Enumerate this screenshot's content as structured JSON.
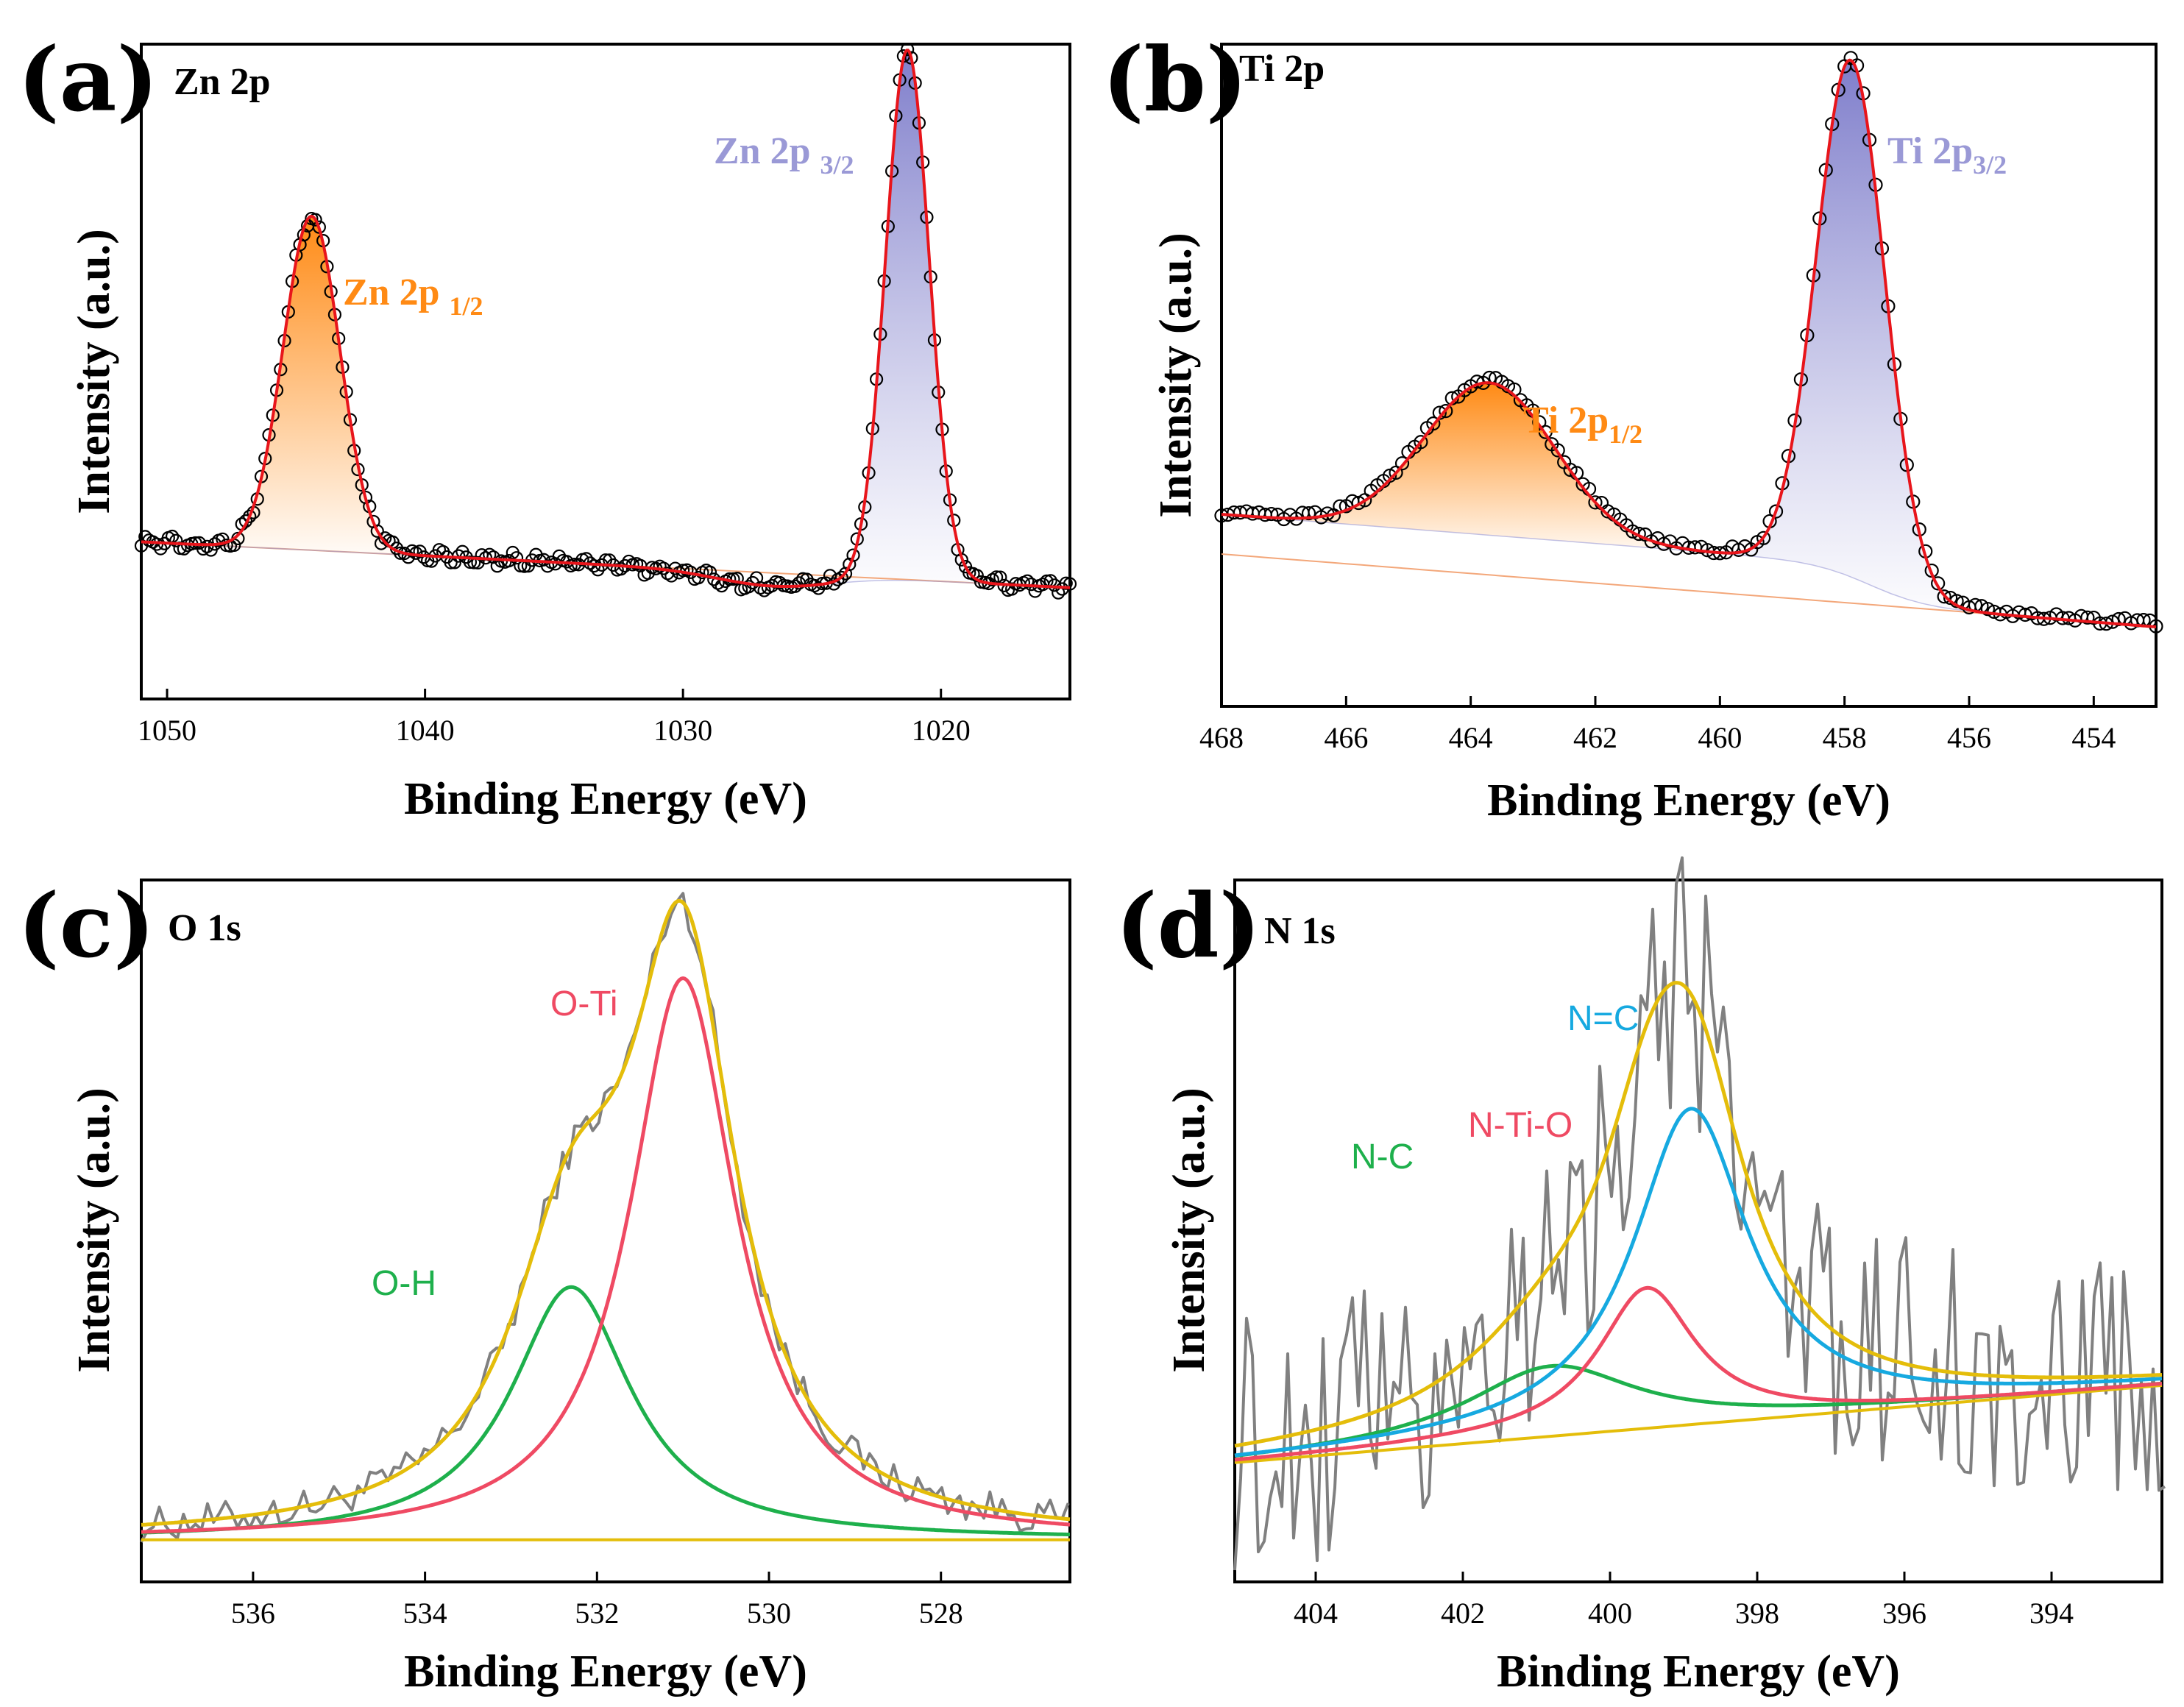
{
  "colors": {
    "fit_red": "#e8151b",
    "orange": "#ff8a14",
    "purple": "#9a99d6",
    "baseline_orange": "#f3a77a",
    "envelope_yellow": "#e4bd0a",
    "component_pink": "#ef4a63",
    "component_green": "#1eb04c",
    "component_blue": "#16a9e0",
    "raw_gray": "#808080"
  },
  "chart_data": [
    {
      "panel": "(a)",
      "title": "Zn 2p",
      "type": "scatter",
      "xlabel": "Binding Energy (eV)",
      "ylabel": "Intensity (a.u.)",
      "xlim": [
        1051,
        1015
      ],
      "ylim": [
        0,
        100
      ],
      "xticks": [
        1050,
        1040,
        1030,
        1020
      ],
      "tick_labels": [
        "1050",
        "1040",
        "1030",
        "1020"
      ],
      "background": {
        "e0": 1051,
        "b0": 24,
        "e1": 1015,
        "b1": 17,
        "dip_center": 1026.5,
        "dip_depth": 2
      },
      "peaks": [
        {
          "label_main": "Zn 2p",
          "label_sub": "1/2",
          "center": 1044.4,
          "height": 51,
          "width": 1.1,
          "color": "orange"
        },
        {
          "label_main": "Zn 2p",
          "label_sub": "3/2",
          "center": 1021.3,
          "height": 81,
          "width": 0.85,
          "color": "purple"
        }
      ]
    },
    {
      "panel": "(b)",
      "title": "Ti 2p",
      "type": "scatter",
      "xlabel": "Binding Energy (eV)",
      "ylabel": "Intensity (a.u.)",
      "xlim": [
        468,
        453
      ],
      "ylim": [
        0,
        100
      ],
      "xticks": [
        468,
        466,
        464,
        462,
        460,
        458,
        456,
        454
      ],
      "tick_labels": [
        "468",
        "466",
        "464",
        "462",
        "460",
        "458",
        "456",
        "454"
      ],
      "background": {
        "e0": 468,
        "b0": 23,
        "e1": 453,
        "b1": 12,
        "step_center": 457.6,
        "step_height": 6
      },
      "peaks": [
        {
          "label_main": "Ti 2p",
          "label_sub": "1/2",
          "center": 463.7,
          "height": 23,
          "width": 1.05,
          "color": "orange"
        },
        {
          "label_main": "Ti 2p",
          "label_sub": "3/2",
          "center": 457.9,
          "height": 78,
          "width": 0.55,
          "color": "purple"
        }
      ]
    },
    {
      "panel": "(c)",
      "title": "O 1s",
      "type": "line",
      "xlabel": "Binding Energy (eV)",
      "ylabel": "Intensity (a.u.)",
      "xlim": [
        537.3,
        526.5
      ],
      "ylim": [
        0,
        100
      ],
      "xticks": [
        536,
        534,
        532,
        530,
        528
      ],
      "tick_labels": [
        "536",
        "534",
        "532",
        "530",
        "528"
      ],
      "baseline": 6,
      "components": [
        {
          "name": "O-Ti",
          "center": 531.0,
          "height": 80,
          "width": 0.75,
          "color": "component_pink"
        },
        {
          "name": "O-H",
          "center": 532.3,
          "height": 36,
          "width": 0.85,
          "color": "component_green"
        }
      ]
    },
    {
      "panel": "(d)",
      "title": "N 1s",
      "type": "line",
      "xlabel": "Binding Energy (eV)",
      "ylabel": "Intensity (a.u.)",
      "xlim": [
        405.1,
        392.5
      ],
      "ylim": [
        0,
        100
      ],
      "xticks": [
        404,
        402,
        400,
        398,
        396,
        394
      ],
      "tick_labels": [
        "404",
        "402",
        "400",
        "398",
        "396",
        "394"
      ],
      "baseline": {
        "e0": 405.1,
        "b0": 17,
        "e1": 392.5,
        "b1": 28
      },
      "components": [
        {
          "name": "N=C",
          "center": 398.9,
          "height": 45,
          "width": 0.95,
          "color": "component_blue"
        },
        {
          "name": "N-Ti-O",
          "center": 399.5,
          "height": 20,
          "width": 0.8,
          "color": "component_pink"
        },
        {
          "name": "N-C",
          "center": 400.8,
          "height": 10,
          "width": 1.4,
          "color": "component_green"
        }
      ]
    }
  ]
}
